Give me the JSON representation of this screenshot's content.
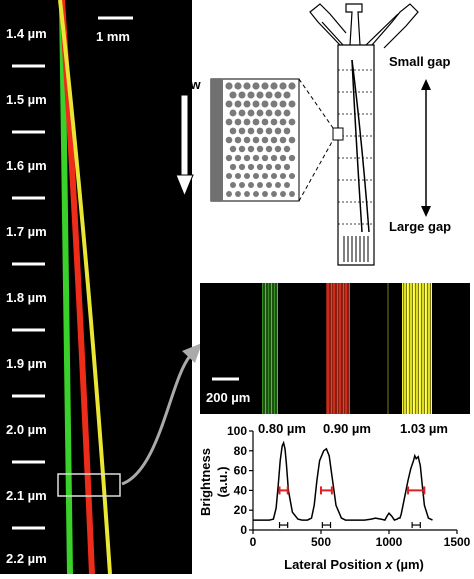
{
  "left_panel": {
    "scale_bar_label": "1 mm",
    "size_labels": [
      "1.4 µm",
      "1.5 µm",
      "1.6 µm",
      "1.7 µm",
      "1.8 µm",
      "1.9 µm",
      "2.0 µm",
      "2.1 µm",
      "2.2 µm"
    ]
  },
  "schematic": {
    "flow_label": "Flow",
    "small_gap_label": "Small gap",
    "large_gap_label": "Large gap"
  },
  "micrograph": {
    "scale_bar_label": "200 µm",
    "band_colors": [
      "#3fbf2c",
      "#e0321c",
      "#e8e830"
    ]
  },
  "profile_chart": {
    "peak_labels": [
      "0.80 µm",
      "0.90 µm",
      "1.03 µm"
    ],
    "ylabel_line1": "Brightness",
    "ylabel_line2": "(a.u.)",
    "xlabel_text": "Lateral Position ",
    "xlabel_var": "x",
    "xlabel_unit": " (µm)",
    "x_ticks": [
      "0",
      "500",
      "1000",
      "1500"
    ],
    "y_ticks": [
      "0",
      "20",
      "40",
      "60",
      "80",
      "100"
    ]
  },
  "chart_data": {
    "type": "line",
    "xlabel": "Lateral Position x (µm)",
    "ylabel": "Brightness (a.u.)",
    "xlim": [
      0,
      1500
    ],
    "ylim": [
      0,
      100
    ],
    "series": [
      {
        "x": [
          0,
          120,
          150,
          170,
          185,
          200,
          215,
          225,
          235,
          245,
          260,
          290,
          330,
          360,
          400,
          430,
          450,
          470,
          490,
          520,
          540,
          560,
          580,
          610,
          650,
          680,
          710,
          760,
          820,
          870,
          900,
          940,
          970,
          985,
          1000,
          1020,
          1040,
          1060,
          1070,
          1080,
          1090,
          1110,
          1140,
          1160,
          1180,
          1190,
          1200,
          1215,
          1230,
          1245,
          1260,
          1290,
          1320
        ],
        "y": [
          10,
          10,
          11,
          22,
          45,
          70,
          85,
          88,
          82,
          68,
          40,
          18,
          11,
          10,
          10,
          12,
          25,
          50,
          70,
          80,
          82,
          75,
          55,
          25,
          12,
          10,
          10,
          10,
          10,
          11,
          12,
          11,
          10,
          14,
          17,
          14,
          10,
          11,
          12,
          12,
          16,
          30,
          50,
          62,
          70,
          75,
          72,
          74,
          65,
          45,
          25,
          12,
          10
        ]
      }
    ],
    "peak_annotations": [
      "0.80 µm",
      "0.90 µm",
      "1.03 µm"
    ]
  }
}
